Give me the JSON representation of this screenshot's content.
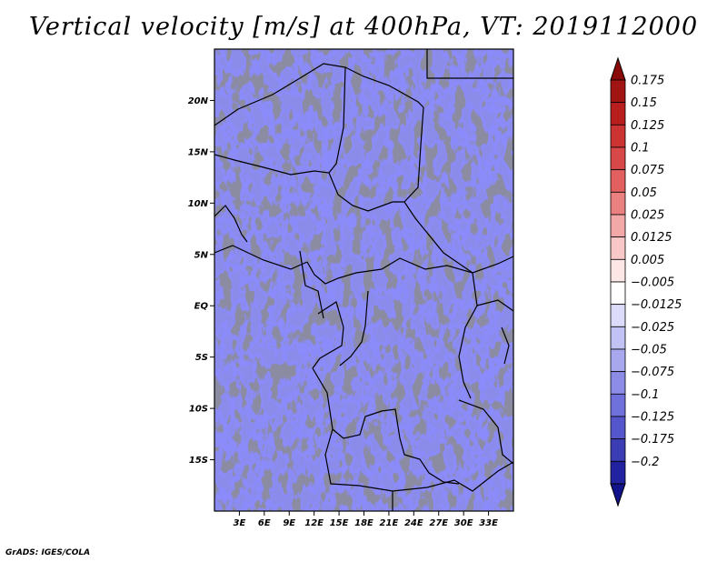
{
  "title": "Vertical velocity [m/s] at 400hPa, VT: 2019112000",
  "footer": "GrADS: IGES/COLA",
  "map": {
    "lon_range": [
      0,
      36
    ],
    "lat_range": [
      -20,
      25
    ],
    "lat_ticks": [
      {
        "value": 20,
        "label": "20N"
      },
      {
        "value": 15,
        "label": "15N"
      },
      {
        "value": 10,
        "label": "10N"
      },
      {
        "value": 5,
        "label": "5N"
      },
      {
        "value": 0,
        "label": "EQ"
      },
      {
        "value": -5,
        "label": "5S"
      },
      {
        "value": -10,
        "label": "10S"
      },
      {
        "value": -15,
        "label": "15S"
      }
    ],
    "lon_ticks": [
      {
        "value": 3,
        "label": "3E"
      },
      {
        "value": 6,
        "label": "6E"
      },
      {
        "value": 9,
        "label": "9E"
      },
      {
        "value": 12,
        "label": "12E"
      },
      {
        "value": 15,
        "label": "15E"
      },
      {
        "value": 18,
        "label": "18E"
      },
      {
        "value": 21,
        "label": "21E"
      },
      {
        "value": 24,
        "label": "24E"
      },
      {
        "value": 27,
        "label": "27E"
      },
      {
        "value": 30,
        "label": "30E"
      },
      {
        "value": 33,
        "label": "33E"
      }
    ]
  },
  "colorbar": {
    "levels": [
      {
        "label": "0.175",
        "color": "#a01414"
      },
      {
        "label": "0.15",
        "color": "#b81e1e"
      },
      {
        "label": "0.125",
        "color": "#cc3333"
      },
      {
        "label": "0.1",
        "color": "#d84848"
      },
      {
        "label": "0.075",
        "color": "#e26060"
      },
      {
        "label": "0.05",
        "color": "#ea8080"
      },
      {
        "label": "0.025",
        "color": "#f3a8a8"
      },
      {
        "label": "0.0125",
        "color": "#f8c8c8"
      },
      {
        "label": "0.005",
        "color": "#fce6e6"
      },
      {
        "label": "−0.005",
        "color": "#ffffff"
      },
      {
        "label": "−0.0125",
        "color": "#dcdcfa"
      },
      {
        "label": "−0.025",
        "color": "#c2c2f4"
      },
      {
        "label": "−0.05",
        "color": "#a8a8ee"
      },
      {
        "label": "−0.075",
        "color": "#8c8ce6"
      },
      {
        "label": "−0.1",
        "color": "#7070dc"
      },
      {
        "label": "−0.125",
        "color": "#5656cc"
      },
      {
        "label": "−0.175",
        "color": "#3c3cb4"
      },
      {
        "label": "−0.2",
        "color": "#2222a0"
      }
    ],
    "top_arrow_color": "#8a0a0a",
    "bottom_arrow_color": "#12128a"
  }
}
